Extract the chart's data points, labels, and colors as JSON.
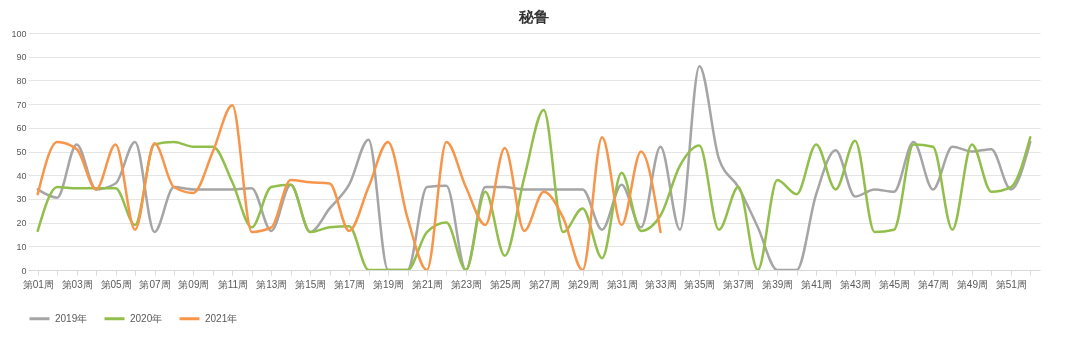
{
  "chart_data": {
    "type": "line",
    "title": "秘鲁",
    "categories": [
      "第01周",
      null,
      "第03周",
      null,
      "第05周",
      null,
      "第07周",
      null,
      "第09周",
      null,
      "第11周",
      null,
      "第13周",
      null,
      "第15周",
      null,
      "第17周",
      null,
      "第19周",
      null,
      "第21周",
      null,
      "第23周",
      null,
      "第25周",
      null,
      "第27周",
      null,
      "第29周",
      null,
      "第31周",
      null,
      "第33周",
      null,
      "第35周",
      null,
      "第37周",
      null,
      "第39周",
      null,
      "第41周",
      null,
      "第43周",
      null,
      "第45周",
      null,
      "第47周",
      null,
      "第49周",
      null,
      "第51周",
      null
    ],
    "series": [
      {
        "name": "2019年",
        "color": "#a5a5a5",
        "values": [
          34,
          30.5,
          53,
          34,
          36.5,
          54,
          16,
          35,
          34,
          34,
          34,
          34.5,
          16.5,
          36,
          16,
          26,
          36,
          55,
          0,
          0,
          35,
          35.5,
          0,
          35,
          35,
          34,
          34,
          34,
          34,
          17,
          36,
          18,
          52,
          17,
          86,
          47,
          35,
          18,
          0,
          0,
          32,
          50.5,
          31,
          34,
          33,
          54,
          34,
          52,
          50,
          51,
          34,
          54
        ]
      },
      {
        "name": "2020年",
        "color": "#92bf4c",
        "values": [
          16.5,
          35,
          34.5,
          34.5,
          34.5,
          19,
          53,
          54,
          52,
          52,
          37,
          18,
          35,
          36,
          16,
          18,
          18.5,
          0,
          0,
          0,
          16,
          20,
          0,
          33,
          6,
          39,
          67.5,
          16,
          26,
          5,
          41,
          16.5,
          23,
          44,
          52.5,
          17,
          35,
          0,
          38,
          32,
          53,
          34,
          54.5,
          16,
          17,
          53,
          52,
          17,
          53,
          33,
          35,
          56
        ]
      },
      {
        "name": "2021年",
        "color": "#f7964a",
        "values": [
          32,
          54,
          51,
          34,
          53,
          17,
          53.5,
          35,
          32.5,
          50,
          69.5,
          16,
          18,
          38,
          37,
          36.5,
          16.5,
          35,
          54,
          22,
          0,
          54,
          35,
          19,
          51.5,
          16.5,
          33,
          22,
          0,
          56,
          19,
          50,
          16,
          null,
          null,
          null,
          null,
          null,
          null,
          null,
          null,
          null,
          null,
          null,
          null,
          null,
          null,
          null,
          null,
          null,
          null,
          null
        ]
      }
    ],
    "ylim": [
      0,
      100
    ],
    "yticks": [
      0,
      10,
      20,
      30,
      40,
      50,
      60,
      70,
      80,
      90,
      100
    ],
    "grid": "y",
    "legend": "bottom",
    "marker": "none",
    "line_style": "solid"
  }
}
